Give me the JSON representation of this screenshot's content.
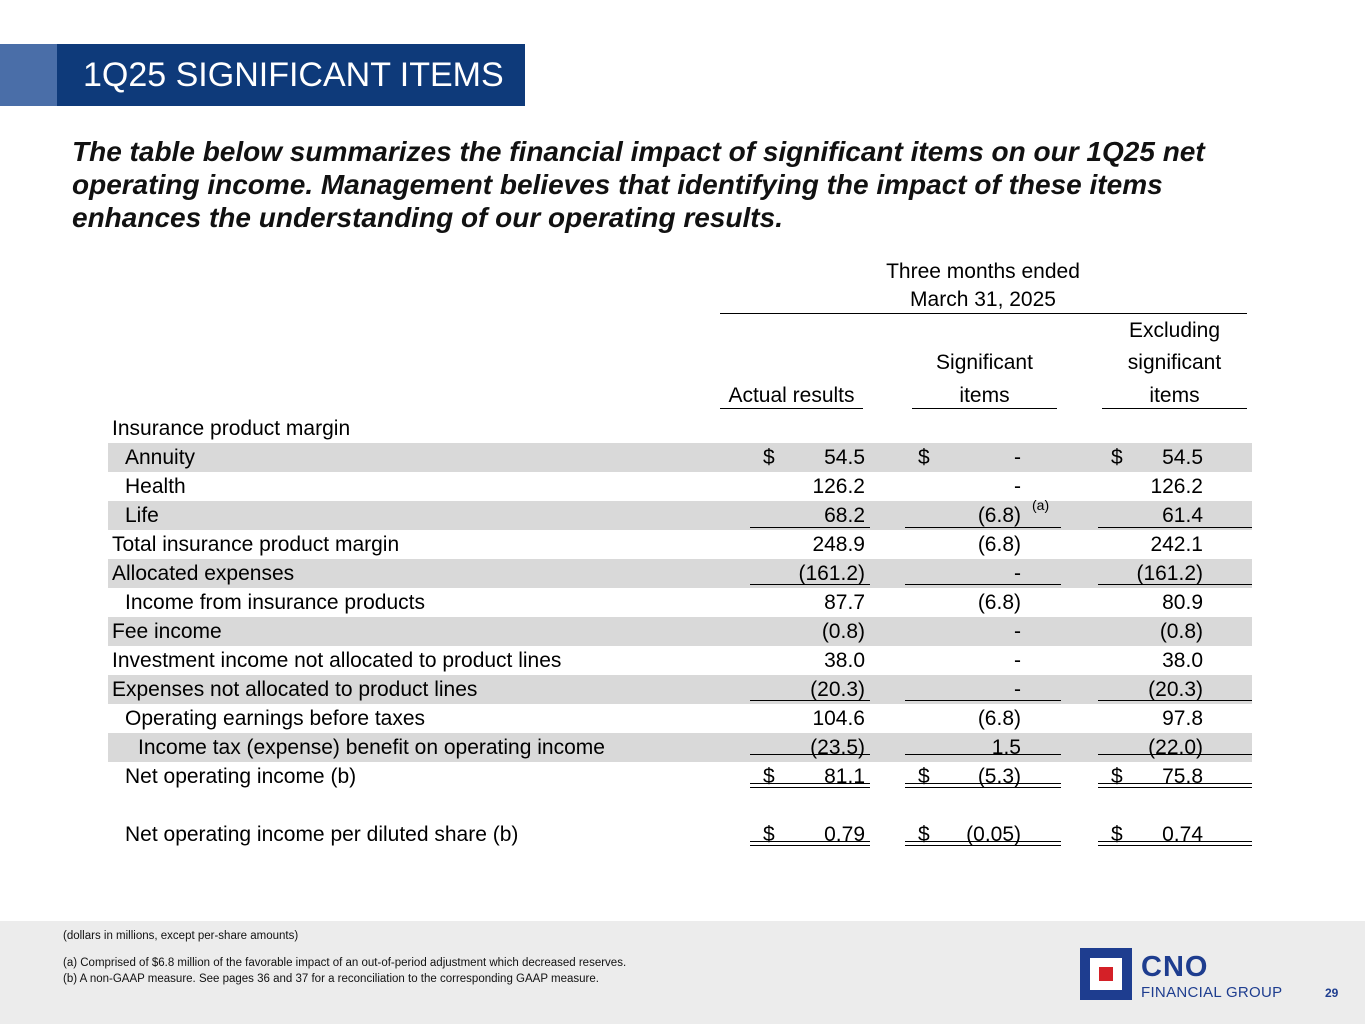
{
  "slide": {
    "title": "1Q25 SIGNIFICANT ITEMS",
    "intro": "The table below summarizes the financial impact of significant items on our 1Q25 net operating income. Management believes that identifying the impact of these items enhances the understanding of our operating results.",
    "page_number": "29"
  },
  "table": {
    "period_line1": "Three months ended",
    "period_line2": "March 31, 2025",
    "col1_header": "Actual results",
    "col2_header_line1": "Significant",
    "col2_header_line2": "items",
    "col3_header_line1": "Excluding",
    "col3_header_line2": "significant",
    "col3_header_line3": "items",
    "section_label": "Insurance product margin",
    "rows": [
      {
        "label": "Annuity",
        "d1": "$",
        "v1": "54.5",
        "d2": "$",
        "v2": "-",
        "d3": "$",
        "v3": "54.5"
      },
      {
        "label": "Health",
        "d1": "",
        "v1": "126.2",
        "d2": "",
        "v2": "-",
        "d3": "",
        "v3": "126.2"
      },
      {
        "label": "Life",
        "d1": "",
        "v1": "68.2",
        "d2": "",
        "v2": "(6.8)",
        "note": "(a)",
        "d3": "",
        "v3": "61.4"
      },
      {
        "label": "Total insurance product margin",
        "d1": "",
        "v1": "248.9",
        "d2": "",
        "v2": "(6.8)",
        "d3": "",
        "v3": "242.1"
      },
      {
        "label": "Allocated expenses",
        "d1": "",
        "v1": "(161.2)",
        "d2": "",
        "v2": "-",
        "d3": "",
        "v3": "(161.2)"
      },
      {
        "label": "Income from insurance products",
        "d1": "",
        "v1": "87.7",
        "d2": "",
        "v2": "(6.8)",
        "d3": "",
        "v3": "80.9"
      },
      {
        "label": "Fee income",
        "d1": "",
        "v1": "(0.8)",
        "d2": "",
        "v2": "-",
        "d3": "",
        "v3": "(0.8)"
      },
      {
        "label": "Investment income not allocated to product lines",
        "d1": "",
        "v1": "38.0",
        "d2": "",
        "v2": "-",
        "d3": "",
        "v3": "38.0"
      },
      {
        "label": "Expenses not allocated to product lines",
        "d1": "",
        "v1": "(20.3)",
        "d2": "",
        "v2": "-",
        "d3": "",
        "v3": "(20.3)"
      },
      {
        "label": "Operating earnings before taxes",
        "d1": "",
        "v1": "104.6",
        "d2": "",
        "v2": "(6.8)",
        "d3": "",
        "v3": "97.8"
      },
      {
        "label": "Income tax (expense) benefit on operating income",
        "d1": "",
        "v1": "(23.5)",
        "d2": "",
        "v2": "1.5",
        "d3": "",
        "v3": "(22.0)"
      },
      {
        "label": "Net operating income (b)",
        "d1": "$",
        "v1": "81.1",
        "d2": "$",
        "v2": "(5.3)",
        "d3": "$",
        "v3": "75.8"
      },
      {
        "label": "Net operating income per diluted share (b)",
        "d1": "$",
        "v1": "0.79",
        "d2": "$",
        "v2": "(0.05)",
        "d3": "$",
        "v3": "0.74"
      }
    ]
  },
  "footnotes": {
    "units": "(dollars in millions, except per-share amounts)",
    "a": "(a) Comprised of $6.8 million of the favorable impact of an out-of-period adjustment which decreased reserves.",
    "b": "(b) A non-GAAP measure. See pages 36 and 37 for a reconciliation to the corresponding GAAP measure."
  },
  "logo": {
    "name": "CNO",
    "subtitle": "FINANCIAL GROUP"
  },
  "colors": {
    "title_bg": "#0e3a7a",
    "accent": "#4a6ea8",
    "row_shade": "#d9d9d9",
    "footer_bg": "#ececec",
    "logo_blue": "#1e3d8f",
    "logo_red": "#d42027"
  }
}
